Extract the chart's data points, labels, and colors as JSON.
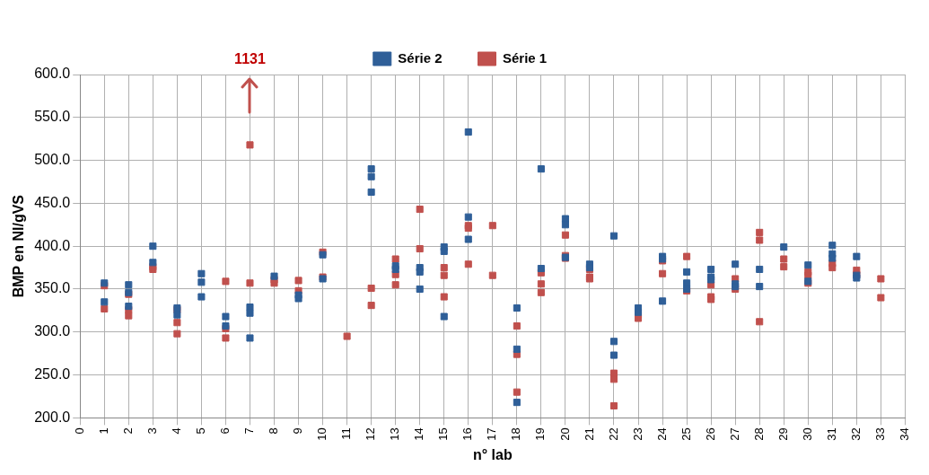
{
  "chart_data": {
    "type": "scatter",
    "xlabel": "n° lab",
    "ylabel": "BMP en Nl/gVS",
    "xlim": [
      0,
      34
    ],
    "xticks": [
      0,
      1,
      2,
      3,
      4,
      5,
      6,
      7,
      8,
      9,
      10,
      11,
      12,
      13,
      14,
      15,
      16,
      17,
      18,
      19,
      20,
      21,
      22,
      23,
      24,
      25,
      26,
      27,
      28,
      29,
      30,
      31,
      32,
      33,
      34
    ],
    "ylim": [
      200,
      600
    ],
    "yticks": [
      {
        "value": 200,
        "label": "200.0"
      },
      {
        "value": 250,
        "label": "250.0"
      },
      {
        "value": 300,
        "label": "300.0"
      },
      {
        "value": 350,
        "label": "350.0"
      },
      {
        "value": 400,
        "label": "400.0"
      },
      {
        "value": 450,
        "label": "450.0"
      },
      {
        "value": 500,
        "label": "500.0"
      },
      {
        "value": 550,
        "label": "550.0"
      },
      {
        "value": 600,
        "label": "600.0"
      }
    ],
    "grid": true,
    "legend": "top",
    "marker": "square",
    "annotations": [
      "1131"
    ],
    "series": [
      {
        "name": "Série 2",
        "color": "#2f5f98",
        "x": [
          1,
          1,
          2,
          2,
          2,
          3,
          3,
          4,
          4,
          5,
          5,
          5,
          6,
          6,
          7,
          7,
          7,
          8,
          9,
          9,
          10,
          10,
          12,
          12,
          12,
          13,
          13,
          14,
          14,
          14,
          15,
          15,
          15,
          16,
          16,
          16,
          18,
          18,
          18,
          19,
          19,
          20,
          20,
          20,
          21,
          21,
          22,
          22,
          22,
          23,
          23,
          24,
          24,
          24,
          25,
          25,
          25,
          26,
          26,
          26,
          27,
          27,
          27,
          28,
          28,
          29,
          30,
          30,
          31,
          31,
          31,
          32,
          32,
          32
        ],
        "values": [
          357,
          335,
          355,
          346,
          330,
          400,
          381,
          328,
          320,
          368,
          358,
          341,
          318,
          307,
          329,
          322,
          293,
          365,
          343,
          339,
          390,
          362,
          490,
          481,
          463,
          377,
          373,
          375,
          370,
          350,
          399,
          394,
          318,
          533,
          434,
          408,
          328,
          280,
          218,
          490,
          374,
          432,
          425,
          387,
          379,
          375,
          412,
          289,
          273,
          328,
          323,
          388,
          385,
          336,
          370,
          357,
          350,
          373,
          364,
          361,
          379,
          356,
          353,
          373,
          353,
          399,
          378,
          359,
          401,
          391,
          386,
          388,
          366,
          363
        ]
      },
      {
        "name": "Série 1",
        "color": "#c0504d",
        "x": [
          1,
          1,
          2,
          2,
          2,
          3,
          3,
          4,
          4,
          4,
          6,
          6,
          6,
          7,
          7,
          8,
          8,
          9,
          9,
          10,
          10,
          11,
          12,
          12,
          13,
          13,
          13,
          14,
          14,
          15,
          15,
          15,
          16,
          16,
          16,
          17,
          17,
          18,
          18,
          18,
          19,
          19,
          19,
          20,
          20,
          20,
          21,
          21,
          21,
          22,
          22,
          22,
          23,
          23,
          24,
          24,
          25,
          25,
          26,
          26,
          26,
          27,
          27,
          28,
          28,
          28,
          29,
          29,
          30,
          30,
          30,
          31,
          31,
          32,
          32,
          33,
          33
        ],
        "values": [
          354,
          327,
          344,
          326,
          319,
          376,
          373,
          326,
          311,
          298,
          359,
          304,
          293,
          518,
          357,
          361,
          357,
          360,
          348,
          393,
          364,
          295,
          351,
          331,
          385,
          367,
          355,
          443,
          397,
          375,
          366,
          341,
          424,
          421,
          379,
          424,
          366,
          307,
          274,
          230,
          369,
          356,
          346,
          413,
          389,
          386,
          373,
          364,
          362,
          252,
          245,
          214,
          320,
          316,
          383,
          368,
          388,
          348,
          355,
          341,
          338,
          362,
          350,
          416,
          407,
          312,
          385,
          376,
          370,
          366,
          357,
          380,
          375,
          372,
          367,
          362,
          340
        ]
      }
    ]
  }
}
